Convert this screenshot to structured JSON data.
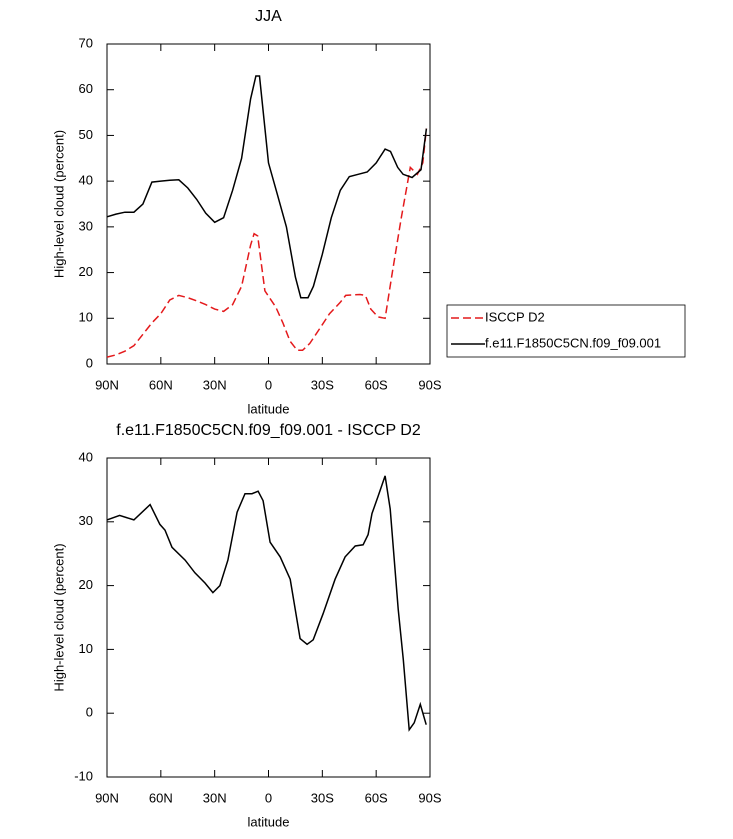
{
  "chart_data": [
    {
      "type": "line",
      "title": "JJA",
      "xlabel": "latitude",
      "ylabel": "High-level cloud (percent)",
      "xlim": [
        90,
        -90
      ],
      "xticks": [
        {
          "value": 90,
          "label": "90N"
        },
        {
          "value": 60,
          "label": "60N"
        },
        {
          "value": 30,
          "label": "30N"
        },
        0,
        {
          "value": -30,
          "label": "30S"
        },
        {
          "value": -60,
          "label": "60S"
        },
        {
          "value": -90,
          "label": "90S"
        }
      ],
      "ylim": [
        0,
        70
      ],
      "yticks": [
        0,
        10,
        20,
        30,
        40,
        50,
        60,
        70
      ],
      "legend": "right",
      "series": [
        {
          "name": "ISCCP D2",
          "color": "#e41a1c",
          "line_style": "dashed",
          "x": [
            90,
            85,
            80,
            75,
            70,
            65,
            60,
            55,
            50,
            45,
            40,
            35,
            30,
            25,
            20,
            15,
            10,
            8,
            6,
            2,
            -4,
            -8,
            -12,
            -16,
            -19,
            -23,
            -29,
            -34,
            -40,
            -43,
            -51,
            -54,
            -57,
            -61,
            -65,
            -69,
            -74,
            -79,
            -83,
            -86,
            -88
          ],
          "values": [
            1.5,
            2,
            2.8,
            4,
            6.5,
            9,
            11,
            14,
            15,
            14.5,
            13.8,
            13,
            12,
            11.5,
            13,
            17,
            26,
            28.5,
            28,
            16,
            12.5,
            9,
            5,
            3,
            3,
            4.5,
            8,
            11,
            13.5,
            15,
            15.2,
            15,
            12,
            10.3,
            10,
            20,
            32,
            43,
            41.5,
            44,
            51.5
          ]
        },
        {
          "name": "f.e11.F1850C5CN.f09_f09.001",
          "color": "#000000",
          "line_style": "solid",
          "x": [
            90,
            85,
            80,
            75,
            70,
            65,
            60,
            55,
            50,
            45,
            40,
            35,
            30,
            25,
            20,
            15,
            10,
            7,
            5,
            0,
            -5,
            -10,
            -15,
            -18,
            -22,
            -25,
            -30,
            -35,
            -40,
            -45,
            -50,
            -55,
            -60,
            -65,
            -68,
            -72,
            -75,
            -80,
            -85,
            -88
          ],
          "values": [
            32.2,
            32.8,
            33.2,
            33.2,
            35,
            39.8,
            40,
            40.2,
            40.3,
            38.5,
            36,
            33,
            31,
            32,
            38,
            45,
            58,
            63,
            63,
            44,
            37,
            30,
            19,
            14.5,
            14.5,
            17,
            24,
            32,
            38,
            41,
            41.5,
            42,
            44,
            47,
            46.5,
            43,
            41.5,
            40.8,
            42.5,
            51.5
          ]
        }
      ]
    },
    {
      "type": "line",
      "title": "f.e11.F1850C5CN.f09_f09.001 - ISCCP D2",
      "xlabel": "latitude",
      "ylabel": "High-level cloud (percent)",
      "xlim": [
        90,
        -90
      ],
      "xticks": [
        {
          "value": 90,
          "label": "90N"
        },
        {
          "value": 60,
          "label": "60N"
        },
        {
          "value": 30,
          "label": "30N"
        },
        0,
        {
          "value": -30,
          "label": "30S"
        },
        {
          "value": -60,
          "label": "60S"
        },
        {
          "value": -90,
          "label": "90S"
        }
      ],
      "ylim": [
        -10,
        40
      ],
      "yticks": [
        -10,
        0,
        10,
        20,
        30,
        40
      ],
      "series": [
        {
          "color": "#000000",
          "line_style": "solid",
          "x": [
            90,
            83,
            75,
            66,
            60.5,
            57.7,
            53.8,
            46.5,
            41,
            35.4,
            31,
            27.1,
            22.6,
            17.5,
            13.1,
            9.2,
            5.8,
            3,
            -0.9,
            -6.5,
            -12.1,
            -17.6,
            -21.5,
            -24.9,
            -30.4,
            -37.1,
            -42.7,
            -48.3,
            -52.7,
            -55.5,
            -57.7,
            -61.1,
            -65,
            -67.8,
            -72.3,
            -75.1,
            -78.4,
            -81.2,
            -84.6,
            -87.9
          ],
          "values": [
            30.3,
            31,
            30.3,
            32.7,
            29.6,
            28.7,
            26,
            24,
            22,
            20.4,
            18.9,
            20,
            24,
            31.5,
            34.4,
            34.4,
            34.8,
            33.3,
            26.8,
            24.5,
            21,
            11.7,
            10.8,
            11.5,
            15.6,
            21,
            24.5,
            26.2,
            26.4,
            28,
            31.3,
            34,
            37.2,
            32,
            16.3,
            8.4,
            -2.6,
            -1.5,
            1.4,
            -1.8
          ]
        }
      ]
    }
  ]
}
